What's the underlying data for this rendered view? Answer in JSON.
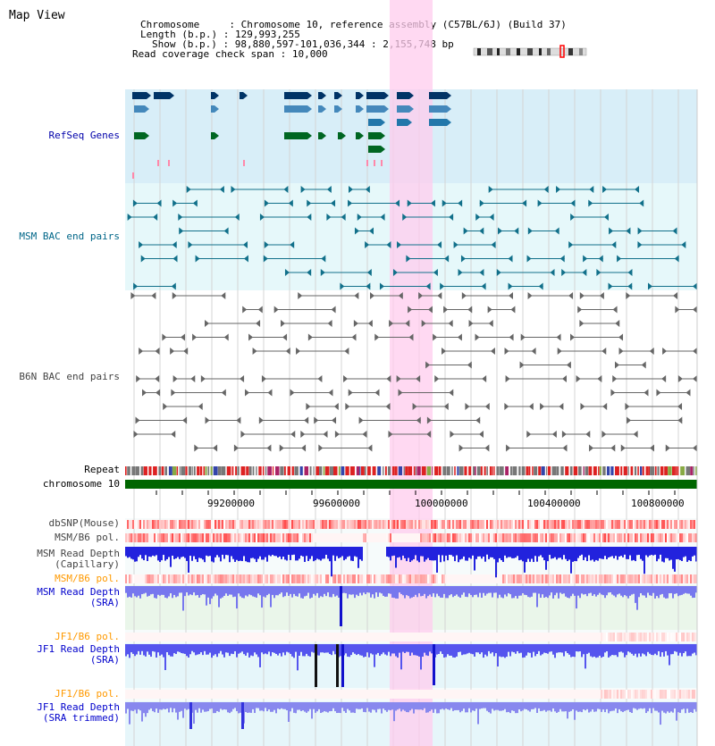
{
  "title": "Map View",
  "info": {
    "chromosome_label": "Chromosome",
    "chromosome_value": "Chromosome 10, reference assembly (C57BL/6J) (Build 37)",
    "length_label": "Length (b.p.)",
    "length_value": "129,993,255",
    "show_label": "Show (b.p.)",
    "show_value": "98,880,597-101,036,344 : 2,155,748 bp",
    "coverage_label": "Read coverage check span",
    "coverage_value": "10,000"
  },
  "tracks": {
    "refseq": "RefSeq Genes",
    "msm_bac": "MSM BAC end pairs",
    "b6n_bac": "B6N BAC end pairs",
    "repeat": "Repeat",
    "chromosome": "chromosome 10",
    "dbsnp": "dbSNP(Mouse)",
    "msm_b6_pol_1": "MSM/B6 pol.",
    "msm_depth_cap_1": "MSM Read Depth",
    "msm_depth_cap_2": "(Capillary)",
    "msm_b6_pol_2": "MSM/B6 pol.",
    "msm_depth_sra_1": "MSM Read Depth",
    "msm_depth_sra_2": "(SRA)",
    "jf1_b6_pol_1": "JF1/B6 pol.",
    "jf1_depth_sra_1": "JF1 Read Depth",
    "jf1_depth_sra_2": "(SRA)",
    "jf1_b6_pol_2": "JF1/B6 pol.",
    "jf1_depth_trim_1": "JF1 Read Depth",
    "jf1_depth_trim_2": "(SRA trimmed)"
  },
  "axis_ticks": [
    "99200000",
    "99600000",
    "100000000",
    "100400000",
    "100800000"
  ],
  "colors": {
    "refseq_label": "#0000aa",
    "msm_label": "#006688",
    "b6n_label": "#444444",
    "orange_label": "#ff9900",
    "blue_label": "#0000cc",
    "highlight": "#ffccee",
    "chromosome_bar": "#006600"
  }
}
